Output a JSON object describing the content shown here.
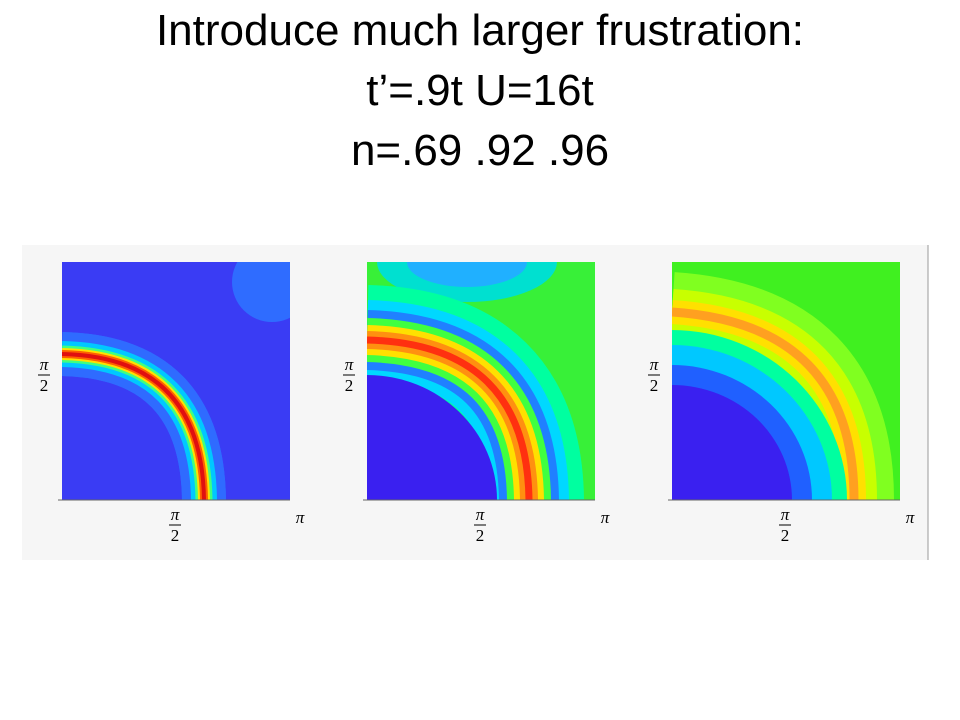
{
  "title": {
    "lines": [
      "Introduce much larger frustration:",
      "t’=.9t U=16t",
      "n=.69 .92 .96"
    ]
  },
  "panels": [
    {
      "y_half_pi": [
        "π",
        "2"
      ],
      "x_half_pi": [
        "π",
        "2"
      ],
      "x_pi": "π"
    },
    {
      "y_half_pi": [
        "π",
        "2"
      ],
      "x_half_pi": [
        "π",
        "2"
      ],
      "x_pi": "π"
    },
    {
      "y_half_pi": [
        "π",
        "2"
      ],
      "x_half_pi": [
        "π",
        "2"
      ],
      "x_pi": "π"
    }
  ]
}
